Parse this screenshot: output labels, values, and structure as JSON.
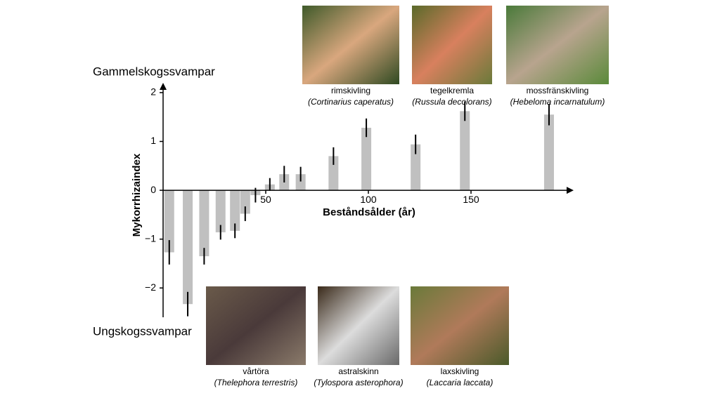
{
  "chart_data": {
    "type": "bar",
    "xlabel": "Beståndsålder (år)",
    "ylabel": "Mykorrhizaindex",
    "top_label": "Gammelskogssvampar",
    "bottom_label": "Ungskogssvampar",
    "color": "#c0c0c0",
    "x": [
      3,
      12,
      20,
      28,
      35,
      40,
      45,
      52,
      59,
      67,
      83,
      99,
      123,
      147,
      188
    ],
    "values": [
      -1.27,
      -2.33,
      -1.35,
      -0.86,
      -0.83,
      -0.48,
      -0.1,
      0.12,
      0.33,
      0.33,
      0.7,
      1.28,
      0.94,
      1.62,
      1.55
    ],
    "errors": [
      0.25,
      0.25,
      0.17,
      0.15,
      0.15,
      0.15,
      0.15,
      0.13,
      0.17,
      0.15,
      0.18,
      0.19,
      0.2,
      0.2,
      0.22
    ],
    "xlim": [
      0,
      200
    ],
    "ylim": [
      -2.6,
      2.2
    ],
    "xticks": [
      50,
      100,
      150
    ],
    "yticks": [
      {
        "value": -2,
        "label": "−2"
      },
      {
        "value": -1,
        "label": "−1"
      },
      0,
      1,
      2
    ],
    "photos": [
      {
        "name": "rimskivling",
        "latin": "(Cortinarius caperatus)"
      },
      {
        "name": "tegelkremla",
        "latin": "(Russula decolorans)"
      },
      {
        "name": "mossfränskivling",
        "latin": "(Hebeloma incarnatulum)"
      },
      {
        "name": "vårtöra",
        "latin": "(Thelephora terrestris)"
      },
      {
        "name": "astralskinn",
        "latin": "(Tylospora asterophora)"
      },
      {
        "name": "laxskivling",
        "latin": "(Laccaria laccata)"
      }
    ]
  }
}
